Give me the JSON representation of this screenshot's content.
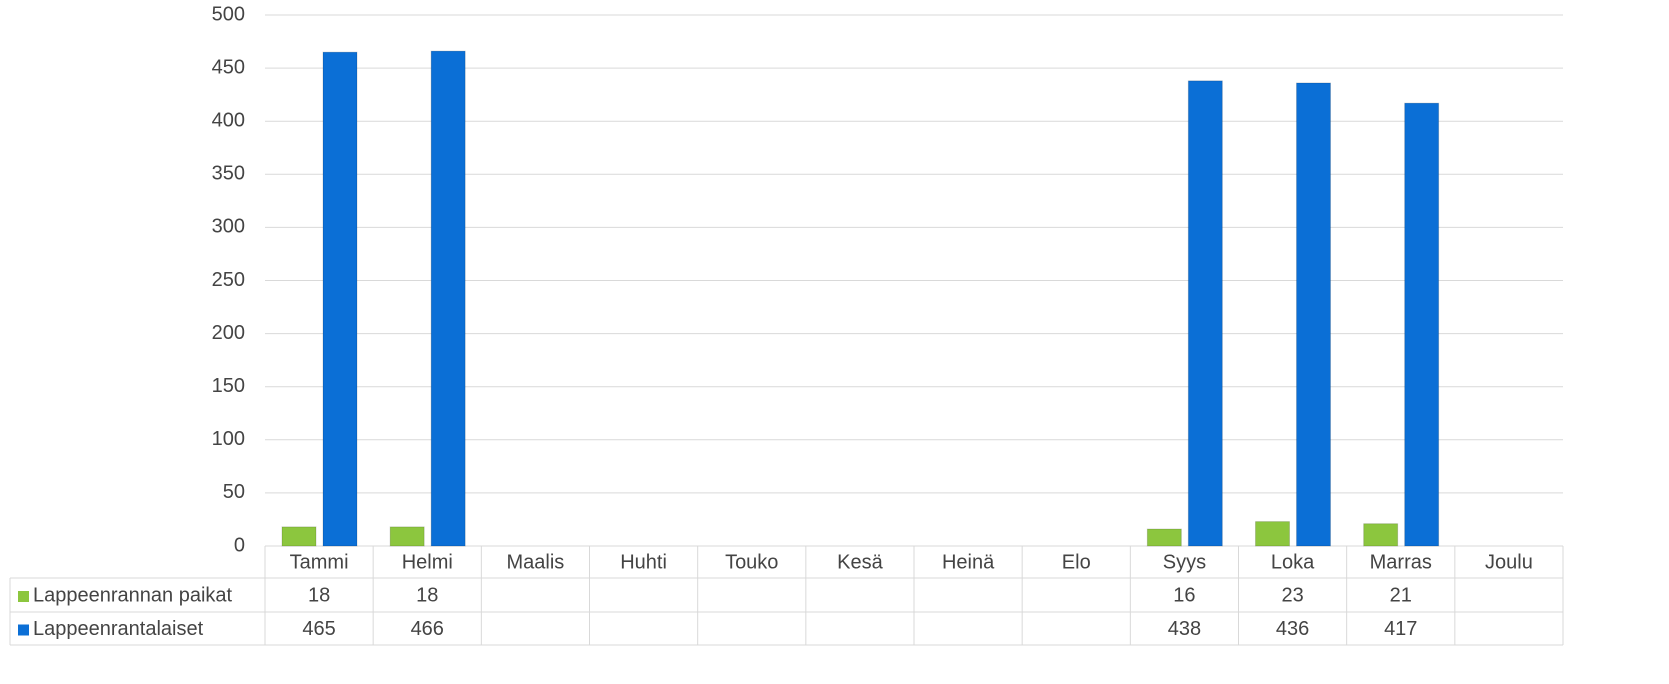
{
  "chart_data": {
    "type": "bar",
    "categories": [
      "Tammi",
      "Helmi",
      "Maalis",
      "Huhti",
      "Touko",
      "Kesä",
      "Heinä",
      "Elo",
      "Syys",
      "Loka",
      "Marras",
      "Joulu"
    ],
    "series": [
      {
        "name": "Lappeenrannan paikat",
        "color": "#8cc63e",
        "values": [
          18,
          18,
          null,
          null,
          null,
          null,
          null,
          null,
          16,
          23,
          21,
          null
        ]
      },
      {
        "name": "Lappeenrantalaiset",
        "color": "#0b6fd6",
        "values": [
          465,
          466,
          null,
          null,
          null,
          null,
          null,
          null,
          438,
          436,
          417,
          null
        ]
      }
    ],
    "ylim": [
      0,
      500
    ],
    "yticks": [
      0,
      50,
      100,
      150,
      200,
      250,
      300,
      350,
      400,
      450,
      500
    ],
    "grid": true
  }
}
